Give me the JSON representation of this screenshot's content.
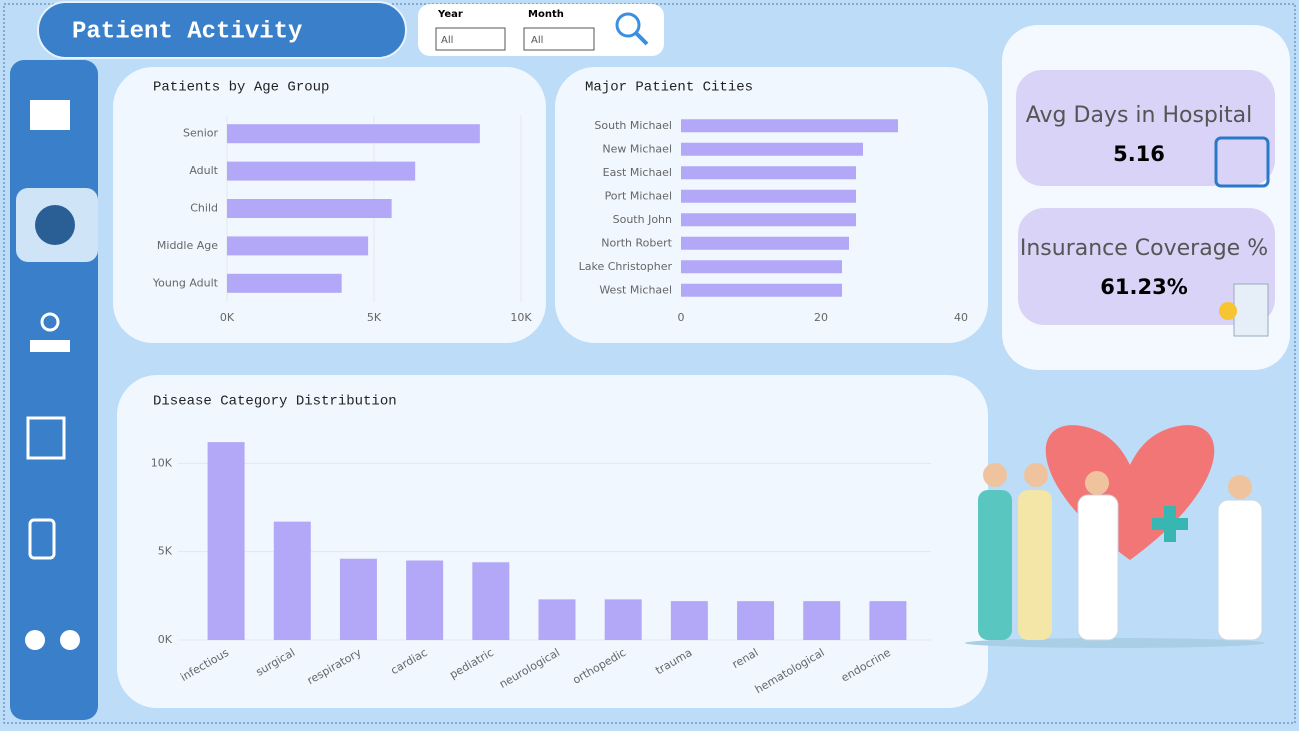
{
  "header": {
    "title": "Patient Activity"
  },
  "filters": [
    {
      "label": "Year",
      "value": "All"
    },
    {
      "label": "Month",
      "value": "All"
    }
  ],
  "kpis": [
    {
      "label": "Avg Days in Hospital",
      "value": "5.16"
    },
    {
      "label": "Insurance Coverage %",
      "value": "61.23%"
    }
  ],
  "chart_data": [
    {
      "type": "bar",
      "orientation": "horizontal",
      "title": "Patients by Age Group",
      "categories": [
        "Senior",
        "Adult",
        "Child",
        "Middle Age",
        "Young Adult"
      ],
      "values": [
        8600,
        6400,
        5600,
        4800,
        3900
      ],
      "color": "#b3a8f7",
      "xlim": [
        0,
        10000
      ],
      "xticks": [
        {
          "value": 0,
          "label": "0K"
        },
        {
          "value": 5000,
          "label": "5K"
        },
        {
          "value": 10000,
          "label": "10K"
        }
      ],
      "grid": true
    },
    {
      "type": "bar",
      "orientation": "horizontal",
      "title": "Major Patient Cities",
      "categories": [
        "South Michael",
        "New Michael",
        "East Michael",
        "Port Michael",
        "South John",
        "North Robert",
        "Lake Christopher",
        "West Michael"
      ],
      "values": [
        31,
        26,
        25,
        25,
        25,
        24,
        23,
        23
      ],
      "color": "#b3a8f7",
      "xlim": [
        0,
        40
      ],
      "xticks": [
        0,
        20,
        40
      ],
      "grid": false
    },
    {
      "type": "bar",
      "orientation": "vertical",
      "title": "Disease Category Distribution",
      "categories": [
        "infectious",
        "surgical",
        "respiratory",
        "cardiac",
        "pediatric",
        "neurological",
        "orthopedic",
        "trauma",
        "renal",
        "hematological",
        "endocrine"
      ],
      "values": [
        11200,
        6700,
        4600,
        4500,
        4400,
        2300,
        2300,
        2200,
        2200,
        2200,
        2200
      ],
      "color": "#b3a8f7",
      "ylim": [
        0,
        12000
      ],
      "yticks": [
        {
          "value": 0,
          "label": "0K"
        },
        {
          "value": 5000,
          "label": "5K"
        },
        {
          "value": 10000,
          "label": "10K"
        }
      ],
      "grid": true
    }
  ]
}
